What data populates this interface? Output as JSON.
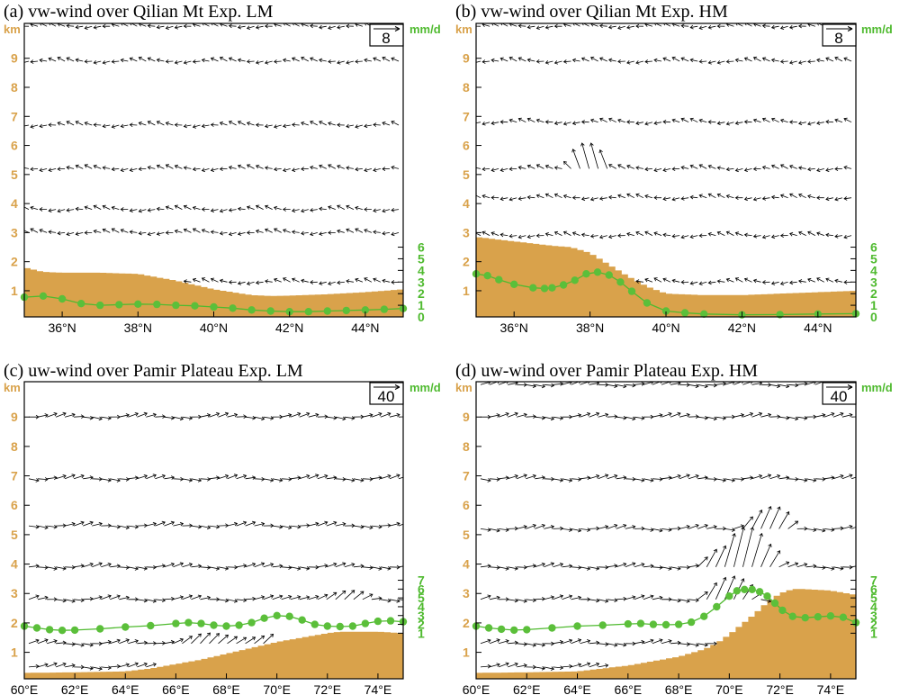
{
  "colors": {
    "terrain": "#d9a24b",
    "precip": "#5bbf3a",
    "precip_line": "#4fba2f",
    "vector": "#000000"
  },
  "chart_data": [
    {
      "id": "a",
      "type": "vertical-section",
      "title": "(a) vw-wind  over Qilian Mt Exp. LM",
      "x_ticks": [
        "36°N",
        "38°N",
        "40°N",
        "42°N",
        "44°N"
      ],
      "x_tick_values": [
        36,
        38,
        40,
        42,
        44
      ],
      "xlim": [
        35,
        45
      ],
      "left_unit": "km",
      "left_ticks": [
        "1",
        "2",
        "3",
        "4",
        "5",
        "6",
        "7",
        "8",
        "9"
      ],
      "left_tick_values": [
        1,
        2,
        3,
        4,
        5,
        6,
        7,
        8,
        9
      ],
      "ylim": [
        0.1,
        10.2
      ],
      "right_unit": "mm/d",
      "right_ticks": [
        "0",
        "1",
        "2",
        "3",
        "4",
        "5",
        "6"
      ],
      "right_tick_values": [
        0,
        1,
        2,
        3,
        4,
        5,
        6
      ],
      "right_map": [
        0.1,
        0.4
      ],
      "ref_vector": "8",
      "wind_levels": [
        1.3,
        3.0,
        3.8,
        5.2,
        6.7,
        8.9,
        10.1
      ],
      "wind_mode": "v",
      "terrain": {
        "x": [
          35,
          35.5,
          36,
          37,
          38,
          39,
          40,
          41,
          41.5,
          42,
          43,
          44,
          45
        ],
        "h": [
          1.8,
          1.65,
          1.62,
          1.62,
          1.58,
          1.35,
          1.05,
          0.85,
          0.82,
          0.83,
          0.88,
          0.95,
          1.05
        ]
      },
      "ascent": [],
      "precip": {
        "x": [
          35,
          35.5,
          36,
          36.5,
          37,
          37.5,
          38,
          38.5,
          39,
          39.5,
          40,
          40.5,
          41,
          41.5,
          42,
          42.5,
          43,
          43.5,
          44,
          44.5,
          45
        ],
        "y": [
          1.7,
          1.8,
          1.55,
          1.15,
          1.0,
          1.05,
          1.1,
          1.08,
          1.0,
          0.95,
          0.85,
          0.75,
          0.6,
          0.5,
          0.45,
          0.45,
          0.5,
          0.55,
          0.6,
          0.65,
          0.72
        ]
      }
    },
    {
      "id": "b",
      "type": "vertical-section",
      "title": "(b) vw-wind  over Qilian Mt Exp. HM",
      "x_ticks": [
        "36°N",
        "38°N",
        "40°N",
        "42°N",
        "44°N"
      ],
      "x_tick_values": [
        36,
        38,
        40,
        42,
        44
      ],
      "xlim": [
        35,
        45
      ],
      "left_unit": "km",
      "left_ticks": [
        "1",
        "2",
        "3",
        "4",
        "5",
        "6",
        "7",
        "8",
        "9"
      ],
      "left_tick_values": [
        1,
        2,
        3,
        4,
        5,
        6,
        7,
        8,
        9
      ],
      "ylim": [
        0.1,
        10.2
      ],
      "right_unit": "mm/d",
      "right_ticks": [
        "0",
        "1",
        "2",
        "3",
        "4",
        "5",
        "6"
      ],
      "right_tick_values": [
        0,
        1,
        2,
        3,
        4,
        5,
        6
      ],
      "right_map": [
        0.1,
        0.4
      ],
      "ref_vector": "8",
      "wind_levels": [
        1.3,
        2.9,
        4.2,
        5.2,
        6.8,
        8.9,
        10.1
      ],
      "wind_mode": "v",
      "terrain": {
        "x": [
          35,
          36,
          37,
          37.5,
          38,
          38.5,
          39,
          39.5,
          40,
          41,
          42,
          43,
          44,
          45
        ],
        "h": [
          2.85,
          2.7,
          2.55,
          2.5,
          2.3,
          1.9,
          1.5,
          1.15,
          0.9,
          0.85,
          0.85,
          0.9,
          0.95,
          1.0
        ]
      },
      "ascent": [
        [
          37.4,
          38.7,
          5.5,
          1.4
        ]
      ],
      "precip": {
        "x": [
          35,
          35.3,
          35.6,
          36,
          36.5,
          36.8,
          37,
          37.3,
          37.6,
          37.9,
          38.2,
          38.5,
          38.8,
          39.1,
          39.5,
          40,
          40.5,
          41,
          42,
          43,
          44,
          45
        ],
        "y": [
          3.7,
          3.55,
          3.2,
          2.8,
          2.5,
          2.45,
          2.5,
          2.75,
          3.15,
          3.7,
          3.85,
          3.6,
          3.0,
          2.2,
          1.2,
          0.5,
          0.35,
          0.25,
          0.18,
          0.2,
          0.25,
          0.28
        ]
      }
    },
    {
      "id": "c",
      "type": "vertical-section",
      "title": "(c) uw-wind  over Pamir Plateau Exp. LM",
      "x_ticks": [
        "60°E",
        "62°E",
        "64°E",
        "66°E",
        "68°E",
        "70°E",
        "72°E",
        "74°E"
      ],
      "x_tick_values": [
        60,
        62,
        64,
        66,
        68,
        70,
        72,
        74
      ],
      "xlim": [
        60,
        75
      ],
      "left_unit": "km",
      "left_ticks": [
        "1",
        "2",
        "3",
        "4",
        "5",
        "6",
        "7",
        "8",
        "9"
      ],
      "left_tick_values": [
        1,
        2,
        3,
        4,
        5,
        6,
        7,
        8,
        9
      ],
      "ylim": [
        0.1,
        10.2
      ],
      "right_unit": "mm/d",
      "right_ticks": [
        "1",
        "2",
        "3",
        "4",
        "5",
        "6",
        "7"
      ],
      "right_tick_values": [
        1,
        2,
        3,
        4,
        5,
        6,
        7
      ],
      "right_map": [
        1.35,
        0.3
      ],
      "ref_vector": "40",
      "wind_levels": [
        0.5,
        1.3,
        2.8,
        3.9,
        5.3,
        6.9,
        9.0
      ],
      "wind_mode": "u",
      "terrain": {
        "x": [
          60,
          62,
          64,
          65,
          66,
          67,
          68,
          69,
          70,
          71,
          72,
          72.5,
          73,
          74,
          75
        ],
        "h": [
          0.3,
          0.32,
          0.35,
          0.45,
          0.6,
          0.75,
          0.95,
          1.15,
          1.35,
          1.5,
          1.65,
          1.7,
          1.7,
          1.7,
          1.65
        ]
      },
      "ascent": [
        [
          64.5,
          72.5,
          1.3,
          0.4
        ],
        [
          70,
          74,
          2.8,
          0.3
        ]
      ],
      "precip": {
        "x": [
          60,
          60.5,
          61,
          61.5,
          62,
          63,
          64,
          65,
          66,
          66.5,
          67,
          67.5,
          68,
          68.5,
          69,
          69.5,
          70,
          70.5,
          71,
          71.5,
          72,
          72.5,
          73,
          73.5,
          74,
          74.5,
          75
        ],
        "y": [
          1.8,
          1.6,
          1.4,
          1.32,
          1.35,
          1.5,
          1.7,
          1.85,
          2.1,
          2.2,
          2.1,
          1.9,
          1.8,
          1.9,
          2.2,
          2.7,
          3.0,
          2.9,
          2.5,
          2.0,
          1.8,
          1.75,
          1.8,
          2.1,
          2.35,
          2.4,
          2.3
        ]
      }
    },
    {
      "id": "d",
      "type": "vertical-section",
      "title": "(d) uw-wind  over Pamir Plateau Exp. HM",
      "x_ticks": [
        "60°E",
        "62°E",
        "64°E",
        "66°E",
        "68°E",
        "70°E",
        "72°E",
        "74°E"
      ],
      "x_tick_values": [
        60,
        62,
        64,
        66,
        68,
        70,
        72,
        74
      ],
      "xlim": [
        60,
        75
      ],
      "left_unit": "km",
      "left_ticks": [
        "1",
        "2",
        "3",
        "4",
        "5",
        "6",
        "7",
        "8",
        "9"
      ],
      "left_tick_values": [
        1,
        2,
        3,
        4,
        5,
        6,
        7,
        8,
        9
      ],
      "ylim": [
        0.1,
        10.2
      ],
      "right_unit": "mm/d",
      "right_ticks": [
        "1",
        "2",
        "3",
        "4",
        "5",
        "6",
        "7"
      ],
      "right_tick_values": [
        1,
        2,
        3,
        4,
        5,
        6,
        7
      ],
      "right_map": [
        1.35,
        0.3
      ],
      "ref_vector": "40",
      "wind_levels": [
        0.5,
        1.3,
        2.8,
        3.9,
        5.2,
        6.9,
        9.0,
        10.1
      ],
      "wind_mode": "u",
      "terrain": {
        "x": [
          60,
          62,
          64,
          65,
          66,
          67,
          68,
          69,
          69.5,
          70,
          70.5,
          71,
          71.5,
          72,
          72.5,
          73,
          74,
          75
        ],
        "h": [
          0.3,
          0.32,
          0.35,
          0.45,
          0.55,
          0.7,
          0.85,
          1.1,
          1.3,
          1.6,
          1.95,
          2.3,
          2.7,
          3.0,
          3.15,
          3.15,
          3.1,
          2.95
        ]
      },
      "ascent": [
        [
          68.5,
          71.2,
          3.0,
          1.0
        ],
        [
          69.5,
          72,
          4.2,
          1.4
        ],
        [
          70,
          72.5,
          5.5,
          1.0
        ]
      ],
      "precip": {
        "x": [
          60,
          60.5,
          61,
          61.5,
          62,
          63,
          64,
          65,
          66,
          66.5,
          67,
          67.5,
          68,
          68.5,
          69,
          69.5,
          70,
          70.3,
          70.6,
          70.9,
          71.2,
          71.5,
          71.8,
          72.1,
          72.5,
          73,
          73.5,
          74,
          74.5,
          75
        ],
        "y": [
          1.8,
          1.6,
          1.45,
          1.35,
          1.4,
          1.6,
          1.8,
          1.9,
          2.05,
          2.1,
          2.0,
          1.95,
          2.0,
          2.25,
          2.9,
          4.0,
          5.2,
          5.8,
          5.95,
          5.95,
          5.7,
          5.2,
          4.4,
          3.6,
          2.9,
          2.75,
          2.85,
          2.95,
          2.8,
          2.2
        ]
      }
    }
  ]
}
